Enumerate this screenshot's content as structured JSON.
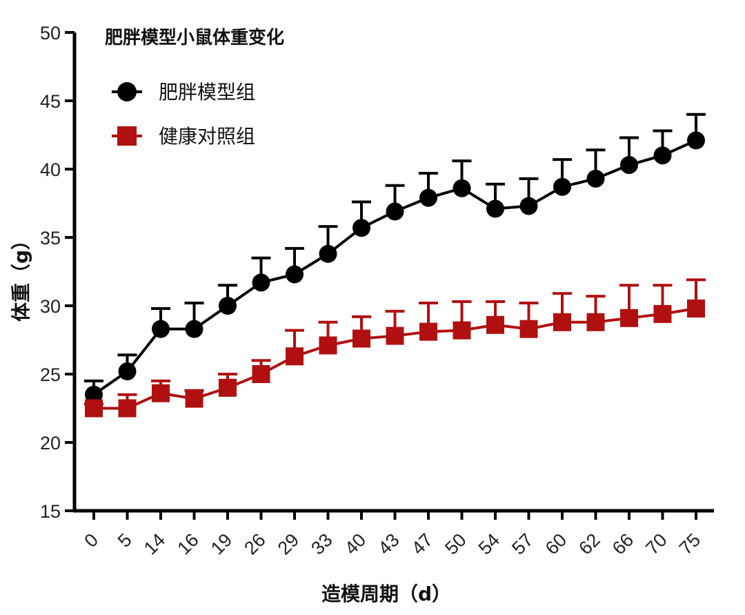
{
  "chart_data": {
    "type": "line",
    "title": "肥胖模型小鼠体重变化",
    "xlabel": "造模周期（d）",
    "ylabel": "体重（g）",
    "categories": [
      "0",
      "5",
      "14",
      "16",
      "19",
      "26",
      "29",
      "33",
      "40",
      "43",
      "47",
      "50",
      "54",
      "57",
      "60",
      "62",
      "66",
      "70",
      "75"
    ],
    "ylim": [
      15,
      50
    ],
    "yticks": [
      15,
      20,
      25,
      30,
      35,
      40,
      45,
      50
    ],
    "grid": false,
    "legend_position": "top-left",
    "error_bars": "upper only",
    "series": [
      {
        "name": "肥胖模型组",
        "marker": "circle",
        "color": "#000000",
        "values": [
          23.5,
          25.2,
          28.3,
          28.3,
          30.0,
          31.7,
          32.3,
          33.8,
          35.7,
          36.9,
          37.9,
          38.6,
          37.1,
          37.3,
          38.7,
          39.3,
          40.3,
          41.0,
          42.1
        ],
        "errors": [
          1.0,
          1.2,
          1.5,
          1.9,
          1.5,
          1.8,
          1.9,
          2.0,
          1.9,
          1.9,
          1.8,
          2.0,
          1.8,
          2.0,
          2.0,
          2.1,
          2.0,
          1.8,
          1.9
        ]
      },
      {
        "name": "健康对照组",
        "marker": "square",
        "color": "#b01010",
        "values": [
          22.5,
          22.5,
          23.6,
          23.2,
          24.0,
          25.0,
          26.3,
          27.1,
          27.6,
          27.8,
          28.1,
          28.2,
          28.6,
          28.3,
          28.8,
          28.8,
          29.1,
          29.4,
          29.8
        ],
        "errors": [
          0.3,
          1.0,
          0.9,
          0.6,
          1.0,
          1.0,
          1.9,
          1.7,
          1.6,
          1.8,
          2.1,
          2.1,
          1.7,
          1.9,
          2.1,
          1.9,
          2.4,
          2.1,
          2.1
        ]
      }
    ]
  }
}
